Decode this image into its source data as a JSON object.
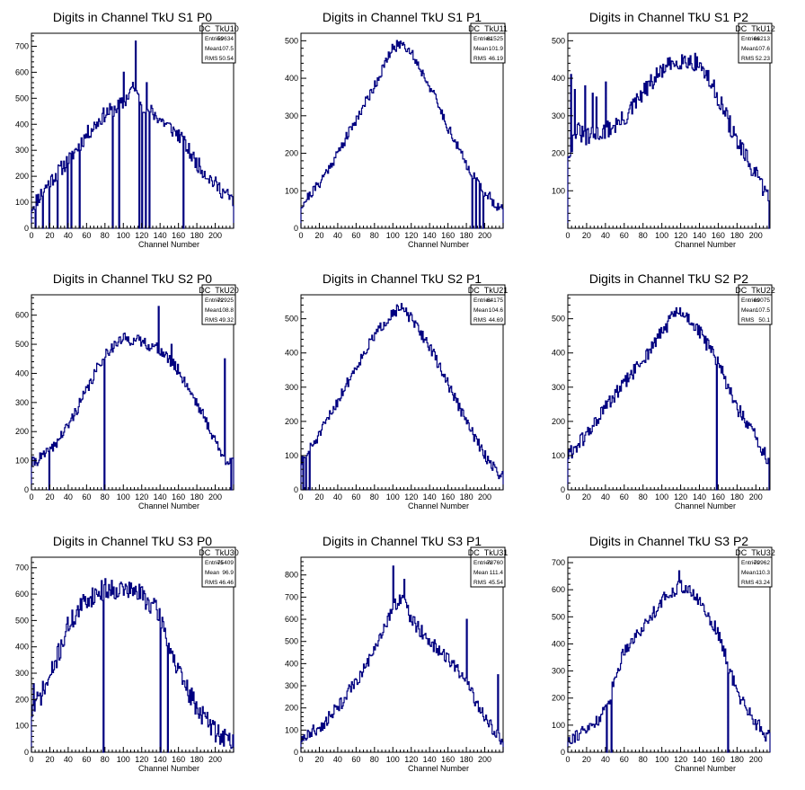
{
  "colors": {
    "line": "#000080",
    "axis": "#000000",
    "background": "#ffffff"
  },
  "chart_data": [
    {
      "type": "histogram",
      "title": "Digits in Channel TkU S1 P0",
      "xlabel": "Channel Number",
      "ylabel": "",
      "xlim": [
        0,
        220
      ],
      "ylim": [
        0,
        750
      ],
      "xticks": [
        0,
        20,
        40,
        60,
        80,
        100,
        120,
        140,
        160,
        180,
        200
      ],
      "yticks": [
        0,
        100,
        200,
        300,
        400,
        500,
        600,
        700
      ],
      "stats": {
        "name": "DC_TkU10",
        "rows": [
          [
            "Entries",
            "59634"
          ],
          [
            "Mean",
            "107.5"
          ],
          [
            "RMS",
            "50.54"
          ]
        ]
      },
      "anchors": [
        [
          0,
          80
        ],
        [
          20,
          180
        ],
        [
          40,
          260
        ],
        [
          60,
          360
        ],
        [
          80,
          440
        ],
        [
          100,
          480
        ],
        [
          110,
          540
        ],
        [
          120,
          480
        ],
        [
          140,
          420
        ],
        [
          160,
          360
        ],
        [
          180,
          250
        ],
        [
          200,
          170
        ],
        [
          218,
          110
        ]
      ],
      "noise": 30,
      "seed": 11,
      "spikes": [
        [
          113,
          720
        ],
        [
          100,
          600
        ],
        [
          108,
          540
        ],
        [
          125,
          560
        ]
      ],
      "dips": [
        4,
        12,
        19,
        28,
        39,
        43,
        52,
        88,
        95,
        117,
        120,
        124,
        128,
        165
      ]
    },
    {
      "type": "histogram",
      "title": "Digits in Channel TkU S1 P1",
      "xlabel": "Channel Number",
      "ylabel": "",
      "xlim": [
        0,
        220
      ],
      "ylim": [
        0,
        520
      ],
      "xticks": [
        0,
        20,
        40,
        60,
        80,
        100,
        120,
        140,
        160,
        180,
        200
      ],
      "yticks": [
        0,
        100,
        200,
        300,
        400,
        500
      ],
      "stats": {
        "name": "DC_TkU11",
        "rows": [
          [
            "Entries",
            "61525"
          ],
          [
            "Mean",
            "101.9"
          ],
          [
            "RMS",
            "46.19"
          ]
        ]
      },
      "anchors": [
        [
          0,
          60
        ],
        [
          20,
          120
        ],
        [
          40,
          200
        ],
        [
          60,
          290
        ],
        [
          80,
          380
        ],
        [
          100,
          480
        ],
        [
          110,
          495
        ],
        [
          120,
          470
        ],
        [
          140,
          380
        ],
        [
          160,
          270
        ],
        [
          180,
          170
        ],
        [
          195,
          110
        ],
        [
          210,
          70
        ],
        [
          218,
          50
        ]
      ],
      "noise": 14,
      "seed": 21,
      "spikes": [],
      "dips": [
        186,
        190,
        194,
        198
      ]
    },
    {
      "type": "histogram",
      "title": "Digits in Channel TkU S1 P2",
      "xlabel": "Channel Number",
      "ylabel": "",
      "xlim": [
        0,
        215
      ],
      "ylim": [
        0,
        520
      ],
      "xticks": [
        0,
        20,
        40,
        60,
        80,
        100,
        120,
        140,
        160,
        180,
        200
      ],
      "yticks": [
        100,
        200,
        300,
        400,
        500
      ],
      "stats": {
        "name": "DC_TkU12",
        "rows": [
          [
            "Entries",
            "66213"
          ],
          [
            "Mean",
            "107.6"
          ],
          [
            "RMS",
            "52.23"
          ]
        ]
      },
      "anchors": [
        [
          0,
          200
        ],
        [
          10,
          260
        ],
        [
          20,
          240
        ],
        [
          30,
          250
        ],
        [
          40,
          260
        ],
        [
          60,
          290
        ],
        [
          80,
          360
        ],
        [
          100,
          420
        ],
        [
          120,
          450
        ],
        [
          140,
          440
        ],
        [
          160,
          350
        ],
        [
          180,
          230
        ],
        [
          200,
          140
        ],
        [
          212,
          90
        ]
      ],
      "noise": 25,
      "seed": 31,
      "spikes": [
        [
          3,
          410
        ],
        [
          7,
          370
        ],
        [
          18,
          380
        ],
        [
          26,
          360
        ],
        [
          30,
          350
        ],
        [
          40,
          390
        ]
      ],
      "dips": [
        214
      ]
    },
    {
      "type": "histogram",
      "title": "Digits in Channel TkU S2 P0",
      "xlabel": "Channel Number",
      "ylabel": "",
      "xlim": [
        0,
        220
      ],
      "ylim": [
        0,
        670
      ],
      "xticks": [
        0,
        20,
        40,
        60,
        80,
        100,
        120,
        140,
        160,
        180,
        200
      ],
      "yticks": [
        0,
        100,
        200,
        300,
        400,
        500,
        600
      ],
      "stats": {
        "name": "DC_TkU20",
        "rows": [
          [
            "Entries",
            "72925"
          ],
          [
            "Mean",
            "108.8"
          ],
          [
            "RMS",
            "49.32"
          ]
        ]
      },
      "anchors": [
        [
          0,
          90
        ],
        [
          20,
          130
        ],
        [
          40,
          220
        ],
        [
          60,
          340
        ],
        [
          80,
          470
        ],
        [
          100,
          520
        ],
        [
          120,
          510
        ],
        [
          140,
          480
        ],
        [
          160,
          410
        ],
        [
          180,
          300
        ],
        [
          200,
          170
        ],
        [
          210,
          100
        ],
        [
          218,
          110
        ]
      ],
      "noise": 20,
      "seed": 41,
      "spikes": [
        [
          138,
          630
        ],
        [
          152,
          500
        ],
        [
          210,
          450
        ]
      ],
      "dips": [
        19,
        79,
        217
      ]
    },
    {
      "type": "histogram",
      "title": "Digits in Channel TkU S2 P1",
      "xlabel": "Channel Number",
      "ylabel": "",
      "xlim": [
        0,
        220
      ],
      "ylim": [
        0,
        570
      ],
      "xticks": [
        0,
        20,
        40,
        60,
        80,
        100,
        120,
        140,
        160,
        180,
        200
      ],
      "yticks": [
        0,
        100,
        200,
        300,
        400,
        500
      ],
      "stats": {
        "name": "DC_TkU21",
        "rows": [
          [
            "Entries",
            "64175"
          ],
          [
            "Mean",
            "104.6"
          ],
          [
            "RMS",
            "44.69"
          ]
        ]
      },
      "anchors": [
        [
          0,
          80
        ],
        [
          20,
          160
        ],
        [
          40,
          260
        ],
        [
          60,
          360
        ],
        [
          80,
          450
        ],
        [
          100,
          520
        ],
        [
          110,
          530
        ],
        [
          120,
          500
        ],
        [
          140,
          420
        ],
        [
          160,
          310
        ],
        [
          180,
          200
        ],
        [
          200,
          100
        ],
        [
          218,
          40
        ]
      ],
      "noise": 16,
      "seed": 51,
      "spikes": [],
      "dips": [
        2,
        5,
        9
      ]
    },
    {
      "type": "histogram",
      "title": "Digits in Channel TkU S2 P2",
      "xlabel": "Channel Number",
      "ylabel": "",
      "xlim": [
        0,
        215
      ],
      "ylim": [
        0,
        570
      ],
      "xticks": [
        0,
        20,
        40,
        60,
        80,
        100,
        120,
        140,
        160,
        180,
        200
      ],
      "yticks": [
        0,
        100,
        200,
        300,
        400,
        500
      ],
      "stats": {
        "name": "DC_TkU22",
        "rows": [
          [
            "Entries",
            "69075"
          ],
          [
            "Mean",
            "107.5"
          ],
          [
            "RMS",
            "50.1"
          ]
        ]
      },
      "anchors": [
        [
          0,
          100
        ],
        [
          20,
          160
        ],
        [
          40,
          240
        ],
        [
          60,
          310
        ],
        [
          80,
          380
        ],
        [
          100,
          460
        ],
        [
          115,
          520
        ],
        [
          130,
          500
        ],
        [
          150,
          420
        ],
        [
          165,
          340
        ],
        [
          180,
          240
        ],
        [
          200,
          150
        ],
        [
          212,
          90
        ]
      ],
      "noise": 22,
      "seed": 61,
      "spikes": [],
      "dips": [
        158,
        214
      ]
    },
    {
      "type": "histogram",
      "title": "Digits in Channel TkU S3 P0",
      "xlabel": "Channel Number",
      "ylabel": "",
      "xlim": [
        0,
        220
      ],
      "ylim": [
        0,
        740
      ],
      "xticks": [
        0,
        20,
        40,
        60,
        80,
        100,
        120,
        140,
        160,
        180,
        200
      ],
      "yticks": [
        0,
        100,
        200,
        300,
        400,
        500,
        600,
        700
      ],
      "stats": {
        "name": "DC_TkU30",
        "rows": [
          [
            "Entries",
            "75409"
          ],
          [
            "Mean",
            "96.9"
          ],
          [
            "RMS",
            "46.46"
          ]
        ]
      },
      "anchors": [
        [
          0,
          150
        ],
        [
          20,
          280
        ],
        [
          40,
          480
        ],
        [
          60,
          580
        ],
        [
          80,
          620
        ],
        [
          100,
          620
        ],
        [
          120,
          600
        ],
        [
          140,
          520
        ],
        [
          160,
          300
        ],
        [
          180,
          170
        ],
        [
          200,
          80
        ],
        [
          218,
          40
        ]
      ],
      "noise": 40,
      "seed": 71,
      "spikes": [
        [
          2,
          260
        ]
      ],
      "dips": [
        78,
        140,
        148
      ]
    },
    {
      "type": "histogram",
      "title": "Digits in Channel TkU S3 P1",
      "xlabel": "Channel Number",
      "ylabel": "",
      "xlim": [
        0,
        220
      ],
      "ylim": [
        0,
        880
      ],
      "xticks": [
        0,
        20,
        40,
        60,
        80,
        100,
        120,
        140,
        160,
        180,
        200
      ],
      "yticks": [
        0,
        100,
        200,
        300,
        400,
        500,
        600,
        700,
        800
      ],
      "stats": {
        "name": "DC_TkU31",
        "rows": [
          [
            "Entries",
            "78760"
          ],
          [
            "Mean",
            "111.4"
          ],
          [
            "RMS",
            "45.54"
          ]
        ]
      },
      "anchors": [
        [
          0,
          60
        ],
        [
          20,
          110
        ],
        [
          40,
          200
        ],
        [
          60,
          320
        ],
        [
          80,
          450
        ],
        [
          100,
          660
        ],
        [
          110,
          700
        ],
        [
          120,
          600
        ],
        [
          140,
          500
        ],
        [
          160,
          420
        ],
        [
          180,
          320
        ],
        [
          200,
          150
        ],
        [
          210,
          100
        ],
        [
          218,
          60
        ]
      ],
      "noise": 30,
      "seed": 81,
      "spikes": [
        [
          100,
          840
        ],
        [
          112,
          780
        ],
        [
          180,
          600
        ],
        [
          214,
          350
        ]
      ],
      "dips": []
    },
    {
      "type": "histogram",
      "title": "Digits in Channel TkU S3 P2",
      "xlabel": "Channel Number",
      "ylabel": "",
      "xlim": [
        0,
        215
      ],
      "ylim": [
        0,
        720
      ],
      "xticks": [
        0,
        20,
        40,
        60,
        80,
        100,
        120,
        140,
        160,
        180,
        200
      ],
      "yticks": [
        0,
        100,
        200,
        300,
        400,
        500,
        600,
        700
      ],
      "stats": {
        "name": "DC_TkU32",
        "rows": [
          [
            "Entries",
            "70962"
          ],
          [
            "Mean",
            "110.3"
          ],
          [
            "RMS",
            "43.24"
          ]
        ]
      },
      "anchors": [
        [
          0,
          50
        ],
        [
          20,
          80
        ],
        [
          40,
          150
        ],
        [
          60,
          380
        ],
        [
          80,
          460
        ],
        [
          100,
          560
        ],
        [
          120,
          620
        ],
        [
          140,
          560
        ],
        [
          160,
          440
        ],
        [
          170,
          330
        ],
        [
          180,
          220
        ],
        [
          200,
          110
        ],
        [
          212,
          60
        ]
      ],
      "noise": 25,
      "seed": 91,
      "spikes": [
        [
          118,
          670
        ]
      ],
      "dips": [
        41,
        46,
        170
      ]
    }
  ]
}
